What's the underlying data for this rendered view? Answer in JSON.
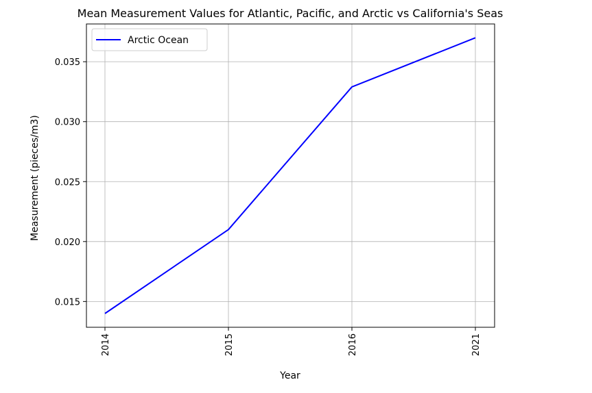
{
  "chart_data": {
    "type": "line",
    "title": "Mean Measurement Values for Atlantic, Pacific, and Arctic vs California's Seas",
    "xlabel": "Year",
    "ylabel": "Measurement (pieces/m3)",
    "categories": [
      "2014",
      "2015",
      "2016",
      "2021"
    ],
    "series": [
      {
        "name": "Arctic Ocean",
        "color": "#0000ff",
        "values": [
          0.014,
          0.021,
          0.0329,
          0.037
        ]
      }
    ],
    "yticks": [
      "0.015",
      "0.020",
      "0.025",
      "0.030",
      "0.035"
    ],
    "ylim": [
      0.01285,
      0.03815
    ],
    "grid": true,
    "legend_position": "top-left"
  }
}
